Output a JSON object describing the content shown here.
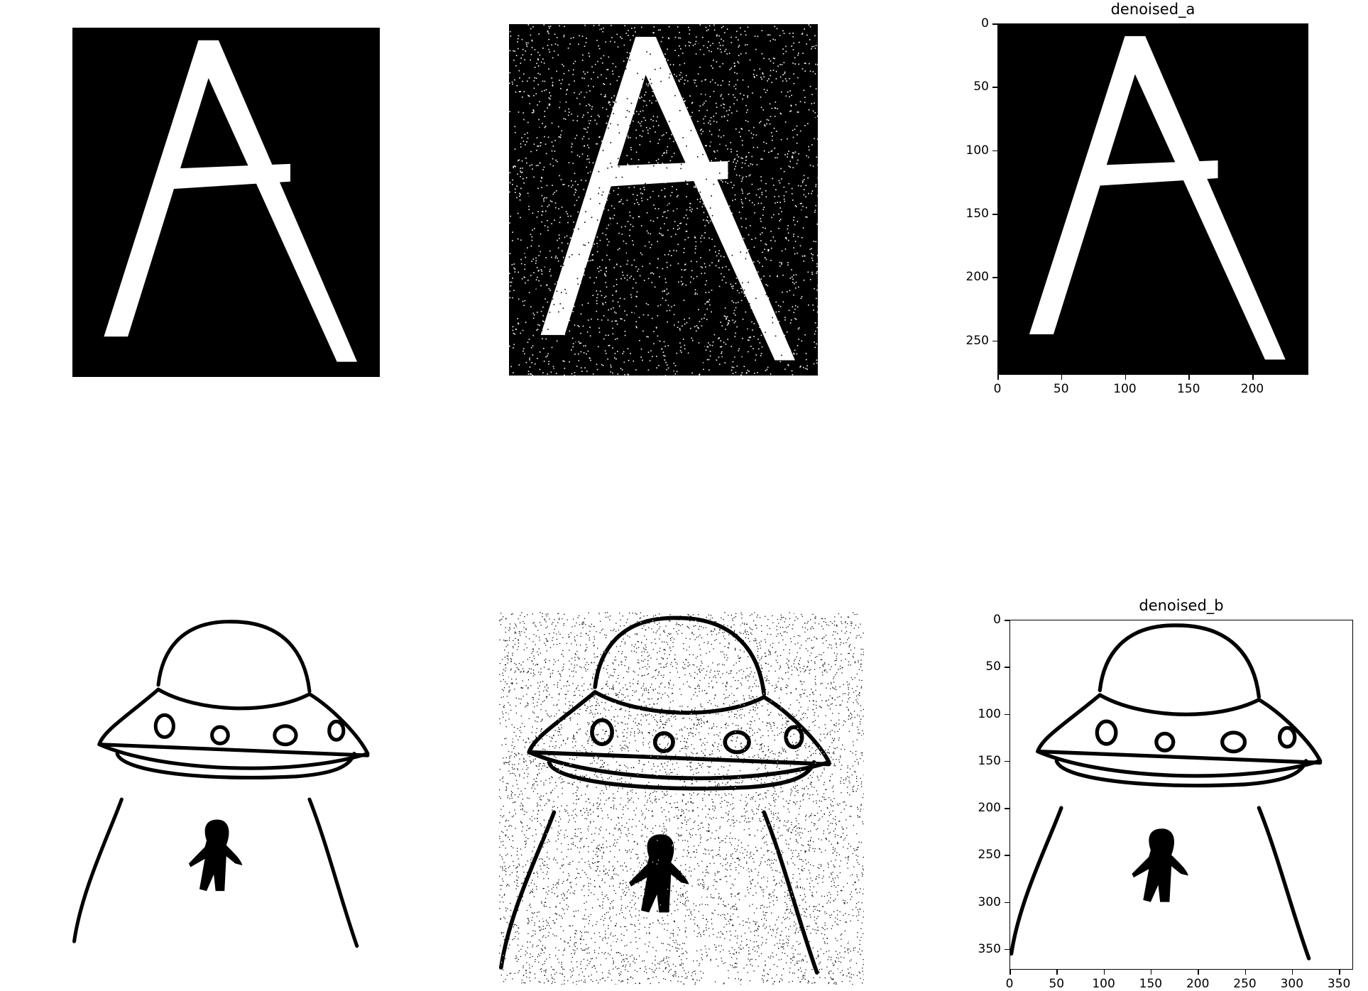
{
  "chart_data": [
    {
      "type": "image",
      "subject": "letter-a-original"
    },
    {
      "type": "image",
      "subject": "letter-a-noisy"
    },
    {
      "type": "image",
      "subject": "letter-a-denoised",
      "title": "denoised_a",
      "xlim": [
        0,
        244
      ],
      "ylim": [
        277,
        0
      ],
      "xticks": [
        "0",
        "50",
        "100",
        "150",
        "200"
      ],
      "xtick_values": [
        0,
        50,
        100,
        150,
        200
      ],
      "yticks": [
        "0",
        "50",
        "100",
        "150",
        "200",
        "250"
      ],
      "ytick_values": [
        0,
        50,
        100,
        150,
        200,
        250
      ]
    },
    {
      "type": "image",
      "subject": "ufo-original"
    },
    {
      "type": "image",
      "subject": "ufo-noisy"
    },
    {
      "type": "image",
      "subject": "ufo-denoised",
      "title": "denoised_b",
      "xlim": [
        0,
        365
      ],
      "ylim": [
        372,
        0
      ],
      "xticks": [
        "0",
        "50",
        "100",
        "150",
        "200",
        "250",
        "300",
        "350"
      ],
      "xtick_values": [
        0,
        50,
        100,
        150,
        200,
        250,
        300,
        350
      ],
      "yticks": [
        "0",
        "50",
        "100",
        "150",
        "200",
        "250",
        "300",
        "350"
      ],
      "ytick_values": [
        0,
        50,
        100,
        150,
        200,
        250,
        300,
        350
      ]
    }
  ],
  "colors": {
    "ink": "#000000",
    "paper": "#ffffff"
  }
}
